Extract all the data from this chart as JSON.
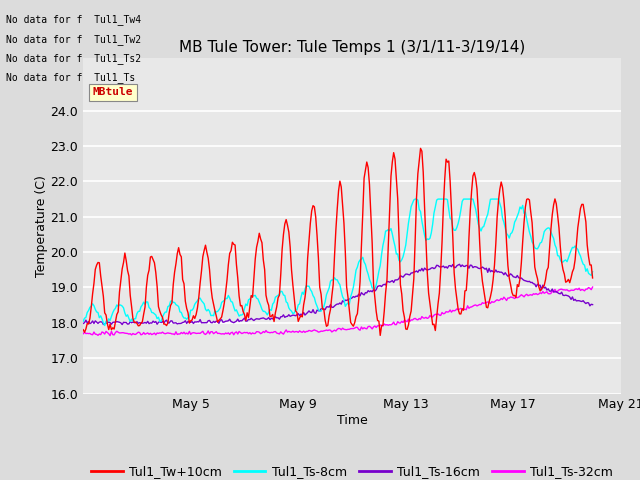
{
  "title": "MB Tule Tower: Tule Temps 1 (3/1/11-3/19/14)",
  "xlabel": "Time",
  "ylabel": "Temperature (C)",
  "ylim": [
    16.0,
    25.5
  ],
  "yticks": [
    16.0,
    17.0,
    18.0,
    19.0,
    20.0,
    21.0,
    22.0,
    23.0,
    24.0
  ],
  "bg_color": "#dcdcdc",
  "plot_bg_color": "#e8e8e8",
  "grid_color": "#ffffff",
  "line_colors": {
    "Tw10": "#ff0000",
    "Ts8": "#00ffff",
    "Ts16": "#7700cc",
    "Ts32": "#ff00ff"
  },
  "legend_labels": [
    "Tul1_Tw+10cm",
    "Tul1_Ts-8cm",
    "Tul1_Ts-16cm",
    "Tul1_Ts-32cm"
  ],
  "no_data_texts": [
    "No data for f  Tul1_Tw4",
    "No data for f  Tul1_Tw2",
    "No data for f  Tul1_Ts2",
    "No data for f  Tul1_Ts"
  ],
  "tooltip_text": "MBtule",
  "xtick_labels": [
    "May 5",
    "May 9",
    "May 13",
    "May 17",
    "May 21"
  ],
  "xtick_positions": [
    4,
    8,
    12,
    16,
    20
  ],
  "title_fontsize": 11,
  "axis_fontsize": 9,
  "tick_fontsize": 9,
  "legend_fontsize": 9
}
